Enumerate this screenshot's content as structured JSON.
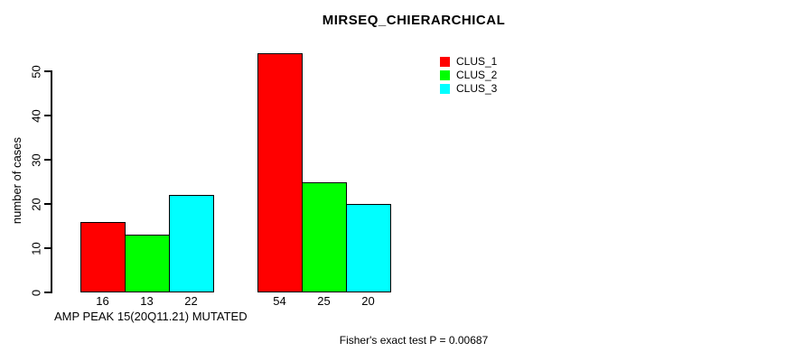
{
  "chart_data": {
    "type": "bar",
    "title": "MIRSEQ_CHIERARCHICAL",
    "xlabel": "AMP PEAK 15(20Q11.21) MUTATED",
    "ylabel": "number of cases",
    "yticks": [
      0,
      10,
      20,
      30,
      40,
      50
    ],
    "ylim": [
      0,
      54
    ],
    "grid": false,
    "legend_position": "top-right",
    "groups": 2,
    "series": [
      {
        "name": "CLUS_1",
        "color": "#ff0000",
        "values": [
          16,
          54
        ]
      },
      {
        "name": "CLUS_2",
        "color": "#00ff00",
        "values": [
          13,
          25
        ]
      },
      {
        "name": "CLUS_3",
        "color": "#00ffff",
        "values": [
          22,
          20
        ]
      }
    ],
    "bar_value_labels": [
      [
        16,
        13,
        22
      ],
      [
        54,
        25,
        20
      ]
    ]
  },
  "footer": {
    "text": "Fisher's exact test P = 0.00687"
  }
}
